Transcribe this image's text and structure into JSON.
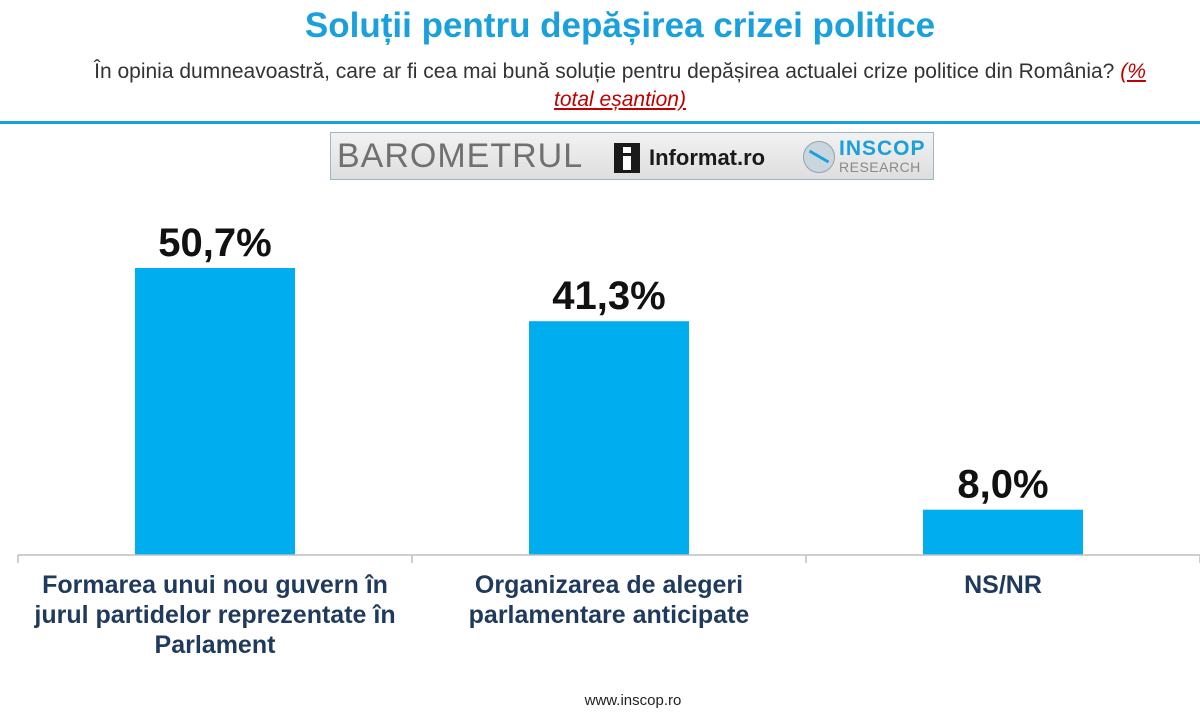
{
  "header": {
    "title": "Soluții pentru depășirea crizei politice",
    "question": "În opinia dumneavoastră, care ar fi cea mai bună soluție pentru depășirea actualei crize politice din România?",
    "question_note": "(% total eșantion)"
  },
  "logo": {
    "barometru": "BAROMETRUL",
    "informat": "Informat.ro",
    "inscop": "INSCOP",
    "research": "RESEARCH"
  },
  "chart_data": {
    "type": "bar",
    "title": "Soluții pentru depășirea crizei politice",
    "categories": [
      "Formarea unui nou guvern în jurul partidelor reprezentate în Parlament",
      "Organizarea de alegeri parlamentare anticipate",
      "NS/NR"
    ],
    "values": [
      50.7,
      41.3,
      8.0
    ],
    "value_labels": [
      "50,7%",
      "41,3%",
      "8,0%"
    ],
    "unit": "%",
    "ylim": [
      0,
      50.7
    ],
    "grid": false,
    "legend": "none",
    "colors": {
      "bar": "#00adef",
      "axis": "#bfbfbf"
    }
  },
  "footer": {
    "website": "www.inscop.ro"
  }
}
